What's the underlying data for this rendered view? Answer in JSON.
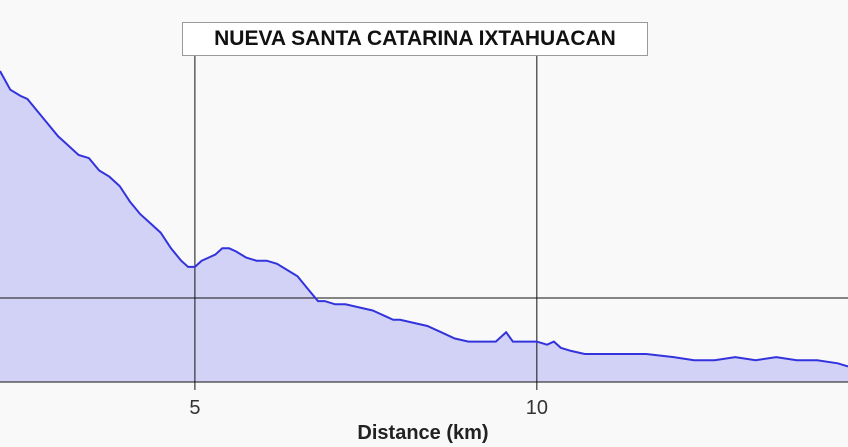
{
  "chart_data": {
    "type": "area",
    "title": "NUEVA SANTA CATARINA IXTAHUACAN",
    "xlabel": "Distance (km)",
    "ylabel": "",
    "xlim": [
      2.15,
      14.55
    ],
    "ylim": [
      0,
      100
    ],
    "x_ticks": [
      5,
      10
    ],
    "x_tick_labels": [
      "5",
      "10"
    ],
    "y_gridlines": [
      27
    ],
    "grid": true,
    "legend": "none",
    "colors": {
      "line": "#3333dd",
      "fill": "#d2d2f6",
      "grid": "#111111",
      "background": "#f9f9f9"
    },
    "series": [
      {
        "x": [
          2.15,
          2.3,
          2.45,
          2.55,
          2.7,
          2.85,
          3.0,
          3.15,
          3.3,
          3.45,
          3.6,
          3.75,
          3.9,
          4.05,
          4.2,
          4.35,
          4.5,
          4.65,
          4.8,
          4.9,
          5.0,
          5.1,
          5.2,
          5.3,
          5.4,
          5.5,
          5.6,
          5.75,
          5.9,
          6.05,
          6.2,
          6.35,
          6.5,
          6.65,
          6.8,
          6.9,
          7.05,
          7.2,
          7.4,
          7.6,
          7.8,
          7.9,
          8.0,
          8.2,
          8.4,
          8.6,
          8.8,
          9.0,
          9.2,
          9.4,
          9.55,
          9.65,
          9.8,
          10.0,
          10.15,
          10.25,
          10.35,
          10.5,
          10.7,
          11.0,
          11.3,
          11.6,
          12.0,
          12.3,
          12.6,
          12.9,
          13.2,
          13.5,
          13.8,
          14.1,
          14.4,
          14.55
        ],
        "y": [
          100,
          94,
          92,
          91,
          87,
          83,
          79,
          76,
          73,
          72,
          68,
          66,
          63,
          58,
          54,
          51,
          48,
          43,
          39,
          37,
          37,
          39,
          40,
          41,
          43,
          43,
          42,
          40,
          39,
          39,
          38,
          36,
          34,
          30,
          26,
          26,
          25,
          25,
          24,
          23,
          21,
          20,
          20,
          19,
          18,
          16,
          14,
          13,
          13,
          13,
          16,
          13,
          13,
          13,
          12,
          13,
          11,
          10,
          9,
          9,
          9,
          9,
          8,
          7,
          7,
          8,
          7,
          8,
          7,
          7,
          6,
          5
        ]
      }
    ]
  }
}
